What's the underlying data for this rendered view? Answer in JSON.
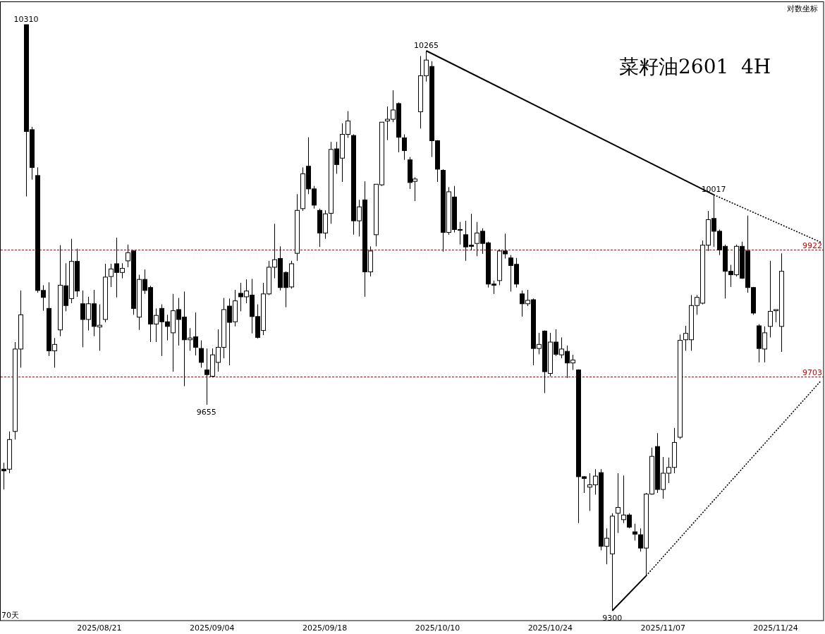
{
  "chart_data": {
    "type": "candlestick",
    "title": "菜籽油2601  4H",
    "color": "#000000",
    "categories": [
      null,
      null,
      null,
      null,
      null,
      null,
      null,
      null,
      null,
      null,
      null,
      null,
      null,
      null,
      null,
      null,
      null,
      "2025/08/21",
      null,
      null,
      null,
      null,
      null,
      null,
      null,
      null,
      null,
      null,
      null,
      null,
      null,
      null,
      null,
      null,
      null,
      null,
      null,
      "2025/09/04",
      null,
      null,
      null,
      null,
      null,
      null,
      null,
      null,
      null,
      null,
      null,
      null,
      null,
      null,
      null,
      null,
      null,
      null,
      null,
      "2025/09/18",
      null,
      null,
      null,
      null,
      null,
      null,
      null,
      null,
      null,
      null,
      null,
      null,
      null,
      null,
      null,
      null,
      null,
      null,
      null,
      "2025/10/10",
      null,
      null,
      null,
      null,
      null,
      null,
      null,
      null,
      null,
      null,
      null,
      null,
      null,
      null,
      null,
      null,
      null,
      null,
      null,
      "2025/10/24",
      null,
      null,
      null,
      null,
      null,
      null,
      null,
      null,
      null,
      null,
      null,
      null,
      null,
      null,
      null,
      null,
      null,
      null,
      null,
      "2025/11/07",
      null,
      null,
      null,
      null,
      null,
      null,
      null,
      null,
      null,
      null,
      null,
      null,
      null,
      null,
      null,
      null,
      null,
      null,
      null,
      "2025/11/24",
      null,
      null,
      null,
      null,
      null,
      null,
      null,
      null
    ],
    "ohlc": [
      [
        9544,
        9555,
        9509,
        9541
      ],
      [
        9544,
        9609,
        9537,
        9595
      ],
      [
        9609,
        9763,
        9595,
        9751
      ],
      [
        9751,
        9852,
        9719,
        9810
      ],
      [
        10310,
        10310,
        10014,
        10126
      ],
      [
        10129,
        10134,
        10043,
        10064
      ],
      [
        10050,
        10064,
        9848,
        9852
      ],
      [
        9852,
        9861,
        9817,
        9840
      ],
      [
        9821,
        9866,
        9739,
        9748
      ],
      [
        9748,
        9770,
        9719,
        9759
      ],
      [
        9784,
        9930,
        9773,
        9861
      ],
      [
        9860,
        9899,
        9816,
        9826
      ],
      [
        9838,
        9941,
        9830,
        9902
      ],
      [
        9902,
        9924,
        9841,
        9851
      ],
      [
        9829,
        9852,
        9754,
        9802
      ],
      [
        9802,
        9841,
        9783,
        9829
      ],
      [
        9829,
        9853,
        9773,
        9790
      ],
      [
        9789,
        9828,
        9748,
        9792
      ],
      [
        9802,
        9898,
        9797,
        9875
      ],
      [
        9876,
        9898,
        9858,
        9889
      ],
      [
        9898,
        9943,
        9840,
        9883
      ],
      [
        9883,
        9899,
        9873,
        9890
      ],
      [
        9903,
        9931,
        9892,
        9917
      ],
      [
        9920,
        9921,
        9810,
        9821
      ],
      [
        9806,
        9879,
        9784,
        9871
      ],
      [
        9871,
        9888,
        9846,
        9852
      ],
      [
        9857,
        9860,
        9763,
        9794
      ],
      [
        9794,
        9821,
        9763,
        9809
      ],
      [
        9821,
        9828,
        9739,
        9798
      ],
      [
        9798,
        9810,
        9766,
        9790
      ],
      [
        9779,
        9846,
        9712,
        9817
      ],
      [
        9819,
        9839,
        9757,
        9802
      ],
      [
        9806,
        9850,
        9687,
        9767
      ],
      [
        9767,
        9787,
        9748,
        9770
      ],
      [
        9772,
        9814,
        9740,
        9754
      ],
      [
        9752,
        9766,
        9719,
        9728
      ],
      [
        9715,
        9752,
        9655,
        9707
      ],
      [
        9704,
        9752,
        9702,
        9741
      ],
      [
        9728,
        9785,
        9712,
        9754
      ],
      [
        9754,
        9839,
        9735,
        9819
      ],
      [
        9825,
        9838,
        9723,
        9797
      ],
      [
        9798,
        9853,
        9790,
        9834
      ],
      [
        9847,
        9865,
        9816,
        9841
      ],
      [
        9841,
        9871,
        9830,
        9851
      ],
      [
        9844,
        9872,
        9778,
        9807
      ],
      [
        9807,
        9828,
        9769,
        9771
      ],
      [
        9783,
        9865,
        9775,
        9846
      ],
      [
        9846,
        9903,
        9844,
        9892
      ],
      [
        9892,
        9967,
        9873,
        9905
      ],
      [
        9907,
        9928,
        9852,
        9857
      ],
      [
        9883,
        9885,
        9823,
        9857
      ],
      [
        9858,
        9903,
        9855,
        9898
      ],
      [
        9916,
        10018,
        9903,
        9990
      ],
      [
        9993,
        10064,
        9989,
        10053
      ],
      [
        10066,
        10116,
        10018,
        10027
      ],
      [
        10027,
        10032,
        9993,
        9999
      ],
      [
        9990,
        9993,
        9927,
        9951
      ],
      [
        9951,
        9990,
        9941,
        9984
      ],
      [
        9985,
        10108,
        9967,
        10095
      ],
      [
        10096,
        10108,
        10053,
        10069
      ],
      [
        10080,
        10140,
        10039,
        10121
      ],
      [
        10121,
        10161,
        10115,
        10144
      ],
      [
        10119,
        10121,
        9948,
        9972
      ],
      [
        9972,
        10008,
        9945,
        9996
      ],
      [
        10008,
        10040,
        9841,
        9884
      ],
      [
        9884,
        9928,
        9876,
        9920
      ],
      [
        9948,
        10035,
        9928,
        10035
      ],
      [
        10034,
        10142,
        10032,
        10142
      ],
      [
        10144,
        10169,
        10111,
        10147
      ],
      [
        10147,
        10197,
        10142,
        10163
      ],
      [
        10174,
        10176,
        10090,
        10116
      ],
      [
        10115,
        10121,
        10077,
        10093
      ],
      [
        10077,
        10082,
        10027,
        10038
      ],
      [
        10040,
        10047,
        10006,
        10044
      ],
      [
        10160,
        10256,
        10131,
        10222
      ],
      [
        10222,
        10265,
        10212,
        10249
      ],
      [
        10238,
        10247,
        10082,
        10110
      ],
      [
        10110,
        10111,
        10039,
        10061
      ],
      [
        10059,
        10061,
        9919,
        9952
      ],
      [
        9952,
        10030,
        9948,
        10022
      ],
      [
        10013,
        10032,
        9952,
        9957
      ],
      [
        9957,
        9970,
        9931,
        9957
      ],
      [
        9948,
        9972,
        9903,
        9927
      ],
      [
        9930,
        9984,
        9921,
        9928
      ],
      [
        9933,
        9970,
        9911,
        9951
      ],
      [
        9954,
        9959,
        9915,
        9933
      ],
      [
        9934,
        9936,
        9857,
        9863
      ],
      [
        9863,
        9869,
        9846,
        9861
      ],
      [
        9869,
        9923,
        9861,
        9920
      ],
      [
        9920,
        9950,
        9907,
        9915
      ],
      [
        9908,
        9913,
        9850,
        9895
      ],
      [
        9897,
        9908,
        9857,
        9863
      ],
      [
        9846,
        9852,
        9807,
        9829
      ],
      [
        9829,
        9853,
        9825,
        9835
      ],
      [
        9836,
        9838,
        9723,
        9752
      ],
      [
        9752,
        9779,
        9742,
        9759
      ],
      [
        9782,
        9783,
        9675,
        9712
      ],
      [
        9709,
        9779,
        9704,
        9763
      ],
      [
        9763,
        9785,
        9739,
        9742
      ],
      [
        9741,
        9771,
        9735,
        9751
      ],
      [
        9747,
        9757,
        9701,
        9727
      ],
      [
        9727,
        9741,
        9715,
        9732
      ],
      [
        9715,
        9716,
        9451,
        9531
      ],
      [
        9531,
        9532,
        9503,
        9528
      ],
      [
        9513,
        9537,
        9472,
        9517
      ],
      [
        9517,
        9544,
        9500,
        9532
      ],
      [
        9538,
        9544,
        9404,
        9411
      ],
      [
        9411,
        9442,
        9380,
        9425
      ],
      [
        9398,
        9468,
        9300,
        9463
      ],
      [
        9468,
        9537,
        9434,
        9478
      ],
      [
        9457,
        9533,
        9451,
        9465
      ],
      [
        9465,
        9468,
        9442,
        9444
      ],
      [
        9436,
        9450,
        9421,
        9432
      ],
      [
        9431,
        9442,
        9402,
        9408
      ],
      [
        9408,
        9503,
        9360,
        9501
      ],
      [
        9501,
        9581,
        9500,
        9566
      ],
      [
        9583,
        9606,
        9503,
        9509
      ],
      [
        9509,
        9565,
        9493,
        9537
      ],
      [
        9537,
        9564,
        9520,
        9547
      ],
      [
        9547,
        9615,
        9537,
        9590
      ],
      [
        9599,
        9776,
        9596,
        9766
      ],
      [
        9767,
        9791,
        9748,
        9778
      ],
      [
        9767,
        9844,
        9748,
        9826
      ],
      [
        9826,
        9844,
        9810,
        9840
      ],
      [
        9830,
        9938,
        9828,
        9930
      ],
      [
        9930,
        9989,
        9920,
        9974
      ],
      [
        9976,
        10017,
        9927,
        9954
      ],
      [
        9954,
        9957,
        9913,
        9922
      ],
      [
        9928,
        9931,
        9838,
        9885
      ],
      [
        9885,
        9896,
        9858,
        9879
      ],
      [
        9879,
        9931,
        9876,
        9928
      ],
      [
        9928,
        9936,
        9872,
        9873
      ],
      [
        9920,
        9981,
        9848,
        9857
      ],
      [
        9857,
        9858,
        9810,
        9813
      ],
      [
        9791,
        9794,
        9728,
        9752
      ],
      [
        9751,
        9790,
        9728,
        9779
      ],
      [
        9790,
        9903,
        9771,
        9816
      ],
      [
        9817,
        9819,
        9797,
        9819
      ],
      [
        9790,
        9916,
        9746,
        9885
      ],
      null,
      null,
      null,
      null,
      null,
      null,
      null
    ],
    "series": [
      {
        "type": "line",
        "color": "#000000",
        "line_style": "solid",
        "values": [
          null,
          null,
          null,
          null,
          null,
          null,
          null,
          null,
          null,
          null,
          null,
          null,
          null,
          null,
          null,
          null,
          null,
          null,
          null,
          null,
          null,
          null,
          null,
          null,
          null,
          null,
          null,
          null,
          null,
          null,
          null,
          null,
          null,
          null,
          null,
          null,
          null,
          null,
          null,
          null,
          null,
          null,
          null,
          null,
          null,
          null,
          null,
          null,
          null,
          null,
          null,
          null,
          null,
          null,
          null,
          null,
          null,
          null,
          null,
          null,
          null,
          null,
          null,
          null,
          null,
          null,
          null,
          null,
          null,
          null,
          null,
          null,
          null,
          null,
          null,
          10265,
          null,
          null,
          null,
          null,
          null,
          null,
          null,
          null,
          null,
          null,
          null,
          null,
          null,
          null,
          null,
          null,
          null,
          null,
          null,
          null,
          null,
          null,
          null,
          null,
          null,
          null,
          null,
          null,
          null,
          null,
          null,
          null,
          null,
          null,
          null,
          null,
          null,
          null,
          null,
          null,
          null,
          null,
          null,
          null,
          null,
          null,
          null,
          null,
          null,
          null,
          10017,
          null,
          null,
          null,
          null,
          null,
          null,
          null,
          null,
          null,
          null,
          null,
          null,
          null,
          null,
          null,
          null,
          null,
          null,
          null
        ]
      },
      {
        "type": "line",
        "color": "#000000",
        "line_style": "dotted",
        "values": [
          null,
          null,
          null,
          null,
          null,
          null,
          null,
          null,
          null,
          null,
          null,
          null,
          null,
          null,
          null,
          null,
          null,
          null,
          null,
          null,
          null,
          null,
          null,
          null,
          null,
          null,
          null,
          null,
          null,
          null,
          null,
          null,
          null,
          null,
          null,
          null,
          null,
          null,
          null,
          null,
          null,
          null,
          null,
          null,
          null,
          null,
          null,
          null,
          null,
          null,
          null,
          null,
          null,
          null,
          null,
          null,
          null,
          null,
          null,
          null,
          null,
          null,
          null,
          null,
          null,
          null,
          null,
          null,
          null,
          null,
          null,
          null,
          null,
          null,
          null,
          null,
          null,
          null,
          null,
          null,
          null,
          null,
          null,
          null,
          null,
          null,
          null,
          null,
          null,
          null,
          null,
          null,
          null,
          null,
          null,
          null,
          null,
          null,
          null,
          null,
          null,
          null,
          null,
          null,
          null,
          null,
          null,
          null,
          null,
          null,
          null,
          null,
          null,
          null,
          null,
          null,
          null,
          null,
          null,
          null,
          null,
          null,
          null,
          null,
          null,
          null,
          10017,
          null,
          null,
          null,
          null,
          null,
          null,
          null,
          null,
          null,
          null,
          null,
          null,
          null,
          null,
          null,
          null,
          null,
          null,
          9935
        ]
      },
      {
        "type": "line",
        "color": "#000000",
        "line_style": "solid",
        "values": [
          null,
          null,
          null,
          null,
          null,
          null,
          null,
          null,
          null,
          null,
          null,
          null,
          null,
          null,
          null,
          null,
          null,
          null,
          null,
          null,
          null,
          null,
          null,
          null,
          null,
          null,
          null,
          null,
          null,
          null,
          null,
          null,
          null,
          null,
          null,
          null,
          null,
          null,
          null,
          null,
          null,
          null,
          null,
          null,
          null,
          null,
          null,
          null,
          null,
          null,
          null,
          null,
          null,
          null,
          null,
          null,
          null,
          null,
          null,
          null,
          null,
          null,
          null,
          null,
          null,
          null,
          null,
          null,
          null,
          null,
          null,
          null,
          null,
          null,
          null,
          null,
          null,
          null,
          null,
          null,
          null,
          null,
          null,
          null,
          null,
          null,
          null,
          null,
          null,
          null,
          null,
          null,
          null,
          null,
          null,
          null,
          null,
          null,
          null,
          null,
          null,
          null,
          null,
          null,
          null,
          null,
          null,
          null,
          9300,
          null,
          null,
          null,
          null,
          null,
          9360,
          null,
          null,
          null,
          null,
          null,
          null,
          null,
          null,
          null,
          null,
          null,
          null,
          null,
          null,
          null,
          null,
          null,
          null,
          null,
          null,
          null,
          null,
          null,
          null,
          null,
          null,
          null,
          null,
          null,
          null,
          null
        ]
      },
      {
        "type": "line",
        "color": "#000000",
        "line_style": "dotted",
        "values": [
          null,
          null,
          null,
          null,
          null,
          null,
          null,
          null,
          null,
          null,
          null,
          null,
          null,
          null,
          null,
          null,
          null,
          null,
          null,
          null,
          null,
          null,
          null,
          null,
          null,
          null,
          null,
          null,
          null,
          null,
          null,
          null,
          null,
          null,
          null,
          null,
          null,
          null,
          null,
          null,
          null,
          null,
          null,
          null,
          null,
          null,
          null,
          null,
          null,
          null,
          null,
          null,
          null,
          null,
          null,
          null,
          null,
          null,
          null,
          null,
          null,
          null,
          null,
          null,
          null,
          null,
          null,
          null,
          null,
          null,
          null,
          null,
          null,
          null,
          null,
          null,
          null,
          null,
          null,
          null,
          null,
          null,
          null,
          null,
          null,
          null,
          null,
          null,
          null,
          null,
          null,
          null,
          null,
          null,
          null,
          null,
          null,
          null,
          null,
          null,
          null,
          null,
          null,
          null,
          null,
          null,
          null,
          null,
          null,
          null,
          null,
          null,
          null,
          null,
          9360,
          null,
          null,
          null,
          null,
          null,
          null,
          null,
          null,
          null,
          null,
          null,
          null,
          null,
          null,
          null,
          null,
          null,
          null,
          null,
          null,
          null,
          null,
          null,
          null,
          null,
          null,
          null,
          null,
          null,
          null,
          9696
        ]
      }
    ],
    "ref_lines": [
      {
        "axis": "y",
        "value": 9922,
        "label": "9922",
        "color": "#cc0000",
        "line_style": "dashed"
      },
      {
        "axis": "y",
        "value": 9703,
        "label": "9703",
        "color": "#cc0000",
        "line_style": "dashed"
      }
    ],
    "annotations": [
      {
        "text": "10310",
        "y": 10310
      },
      {
        "text": "10265",
        "y": 10265
      },
      {
        "text": "10017",
        "y": 10017
      },
      {
        "text": "9655",
        "y": 9655
      },
      {
        "text": "9300",
        "y": 9300
      },
      "对数坐标",
      "70天"
    ]
  }
}
